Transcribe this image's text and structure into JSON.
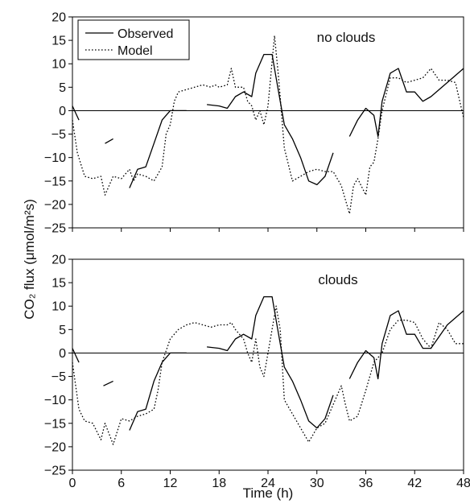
{
  "chart_data": [
    {
      "type": "line",
      "panel_label": "no clouds",
      "x_range": [
        0,
        48
      ],
      "ylim": [
        -25,
        20
      ],
      "x_ticks": [
        "0",
        "6",
        "12",
        "18",
        "24",
        "30",
        "36",
        "42",
        "48"
      ],
      "y_ticks": [
        "20",
        "15",
        "10",
        "5",
        "0",
        "−5",
        "−10",
        "−15",
        "−20",
        "−25"
      ],
      "legend": {
        "position": "top-left",
        "entries": [
          "Observed",
          "Model"
        ]
      },
      "series": [
        {
          "name": "Observed",
          "style": "solid",
          "segments": [
            [
              [
                0,
                1
              ],
              [
                0.4,
                -0.5
              ],
              [
                0.8,
                -2
              ]
            ],
            [
              [
                4,
                -7
              ],
              [
                5,
                -6
              ]
            ],
            [
              [
                7,
                -16.5
              ],
              [
                8,
                -12.5
              ],
              [
                9,
                -12
              ],
              [
                10,
                -7
              ],
              [
                11,
                -2
              ],
              [
                12,
                0
              ],
              [
                13,
                0
              ],
              [
                14,
                0
              ]
            ],
            [
              [
                16.5,
                1.3
              ],
              [
                18,
                1
              ],
              [
                19,
                0.5
              ],
              [
                20,
                3
              ],
              [
                21,
                4
              ],
              [
                22,
                3
              ],
              [
                22.5,
                8
              ],
              [
                23.5,
                12
              ],
              [
                24.5,
                12
              ],
              [
                25,
                7
              ],
              [
                26,
                -3
              ],
              [
                27,
                -6
              ],
              [
                28,
                -10
              ],
              [
                29,
                -15
              ],
              [
                30,
                -15.8
              ],
              [
                31,
                -14
              ],
              [
                32,
                -9
              ]
            ],
            [
              [
                34,
                -5.5
              ],
              [
                35,
                -2
              ],
              [
                36,
                0.5
              ],
              [
                37,
                -1
              ],
              [
                37.5,
                -5.5
              ],
              [
                38,
                2
              ],
              [
                39,
                8
              ],
              [
                40,
                9
              ],
              [
                41,
                4
              ],
              [
                42,
                4
              ],
              [
                43,
                2
              ],
              [
                44,
                3
              ],
              [
                46,
                6
              ],
              [
                48,
                9
              ]
            ]
          ]
        },
        {
          "name": "Model",
          "style": "dotted",
          "segments": [
            [
              [
                0,
                -2
              ],
              [
                0.6,
                -9
              ],
              [
                1.5,
                -14
              ],
              [
                2.5,
                -14.5
              ],
              [
                3.5,
                -14
              ],
              [
                4,
                -18
              ],
              [
                5,
                -14
              ],
              [
                6,
                -14.5
              ],
              [
                7,
                -12.5
              ],
              [
                7.5,
                -15
              ],
              [
                8,
                -13.5
              ],
              [
                9,
                -14
              ],
              [
                10,
                -15
              ],
              [
                11,
                -12
              ],
              [
                11.5,
                -5
              ],
              [
                12,
                -3
              ],
              [
                12.5,
                2
              ],
              [
                13,
                4
              ],
              [
                14,
                4.5
              ],
              [
                15,
                5
              ],
              [
                16,
                5.5
              ],
              [
                17,
                5
              ],
              [
                17.5,
                5.5
              ],
              [
                18,
                5
              ],
              [
                19,
                5.5
              ],
              [
                19.5,
                9
              ],
              [
                20,
                5
              ],
              [
                21,
                5
              ],
              [
                21.5,
                2
              ],
              [
                22,
                1
              ],
              [
                22.5,
                -2
              ],
              [
                23,
                0
              ],
              [
                23.5,
                -3
              ],
              [
                24,
                1
              ],
              [
                24.8,
                16
              ],
              [
                25.3,
                7
              ],
              [
                26,
                -8
              ],
              [
                27,
                -15
              ],
              [
                28,
                -14
              ],
              [
                29,
                -13
              ],
              [
                30,
                -12.5
              ],
              [
                31,
                -13
              ],
              [
                32,
                -13
              ],
              [
                33,
                -16
              ],
              [
                33.5,
                -19
              ],
              [
                34,
                -22
              ],
              [
                34.5,
                -16
              ],
              [
                35,
                -14.5
              ],
              [
                36,
                -18
              ],
              [
                36.5,
                -12
              ],
              [
                37,
                -11
              ],
              [
                37.5,
                -6
              ],
              [
                38,
                0
              ],
              [
                39,
                7
              ],
              [
                40,
                7
              ],
              [
                41,
                6
              ],
              [
                42,
                6.5
              ],
              [
                43,
                7
              ],
              [
                44,
                9
              ],
              [
                45,
                6.5
              ],
              [
                46,
                6.5
              ],
              [
                47,
                6
              ],
              [
                48,
                -1.5
              ]
            ]
          ]
        }
      ]
    },
    {
      "type": "line",
      "panel_label": "clouds",
      "x_range": [
        0,
        48
      ],
      "ylim": [
        -25,
        20
      ],
      "x_ticks": [
        "0",
        "6",
        "12",
        "18",
        "24",
        "30",
        "36",
        "42",
        "48"
      ],
      "y_ticks": [
        "20",
        "15",
        "10",
        "5",
        "0",
        "−5",
        "−10",
        "−15",
        "−20",
        "−25"
      ],
      "series": [
        {
          "name": "Observed",
          "style": "solid",
          "segments": [
            [
              [
                0,
                1
              ],
              [
                0.4,
                -0.5
              ],
              [
                0.8,
                -2
              ]
            ],
            [
              [
                3.8,
                -7
              ],
              [
                5,
                -6
              ]
            ],
            [
              [
                7,
                -16.5
              ],
              [
                8,
                -12.5
              ],
              [
                9,
                -12
              ],
              [
                10,
                -6
              ],
              [
                11,
                -2
              ],
              [
                12,
                0
              ],
              [
                13,
                0
              ],
              [
                14,
                0
              ]
            ],
            [
              [
                16.5,
                1.3
              ],
              [
                18,
                1
              ],
              [
                19,
                0.5
              ],
              [
                20,
                3
              ],
              [
                21,
                4
              ],
              [
                22,
                3
              ],
              [
                22.5,
                8
              ],
              [
                23.5,
                12
              ],
              [
                24.5,
                12
              ],
              [
                25,
                7
              ],
              [
                26,
                -3
              ],
              [
                27,
                -6
              ],
              [
                28,
                -10
              ],
              [
                29,
                -14.5
              ],
              [
                30,
                -16
              ],
              [
                31,
                -14
              ],
              [
                32,
                -9
              ]
            ],
            [
              [
                34,
                -5.5
              ],
              [
                35,
                -2
              ],
              [
                36,
                0.5
              ],
              [
                37,
                -1
              ],
              [
                37.5,
                -5.5
              ],
              [
                38,
                2
              ],
              [
                39,
                8
              ],
              [
                40,
                9
              ],
              [
                41,
                4
              ],
              [
                42,
                4
              ],
              [
                43,
                1
              ],
              [
                44,
                1
              ],
              [
                46,
                6
              ],
              [
                48,
                9
              ]
            ]
          ]
        },
        {
          "name": "Model",
          "style": "dotted",
          "segments": [
            [
              [
                0,
                -2
              ],
              [
                0.8,
                -12
              ],
              [
                1.5,
                -14.5
              ],
              [
                2.5,
                -15
              ],
              [
                3.5,
                -18.5
              ],
              [
                4,
                -15
              ],
              [
                5,
                -19.5
              ],
              [
                6,
                -14
              ],
              [
                7,
                -14.5
              ],
              [
                8,
                -13.5
              ],
              [
                9,
                -13
              ],
              [
                10,
                -12
              ],
              [
                10.5,
                -8
              ],
              [
                11,
                -2
              ],
              [
                12,
                3
              ],
              [
                13,
                5
              ],
              [
                14,
                6
              ],
              [
                15,
                6.5
              ],
              [
                16,
                6
              ],
              [
                17,
                5.5
              ],
              [
                18,
                6
              ],
              [
                19,
                6
              ],
              [
                19.5,
                6.5
              ],
              [
                20,
                5
              ],
              [
                21,
                3
              ],
              [
                21.5,
                0
              ],
              [
                22,
                -2
              ],
              [
                22.5,
                3
              ],
              [
                23,
                -3
              ],
              [
                23.5,
                -5
              ],
              [
                24,
                0
              ],
              [
                25,
                10
              ],
              [
                25.5,
                5
              ],
              [
                26,
                -10
              ],
              [
                27,
                -13
              ],
              [
                28,
                -16
              ],
              [
                29,
                -19
              ],
              [
                30,
                -16
              ],
              [
                31,
                -15
              ],
              [
                32,
                -11
              ],
              [
                33,
                -7
              ],
              [
                33.5,
                -11
              ],
              [
                34,
                -14.5
              ],
              [
                35,
                -13.5
              ],
              [
                36,
                -8
              ],
              [
                37,
                -2
              ],
              [
                38,
                0
              ],
              [
                39,
                5
              ],
              [
                40,
                7
              ],
              [
                41,
                7
              ],
              [
                42,
                6.5
              ],
              [
                43,
                3
              ],
              [
                44,
                1
              ],
              [
                45,
                6.5
              ],
              [
                46,
                5
              ],
              [
                47,
                2
              ],
              [
                48,
                2
              ]
            ]
          ]
        }
      ]
    }
  ],
  "shared_labels": {
    "x_axis_label": "Time (h)",
    "y_axis_label": "CO₂ flux (μmol/m²s)"
  }
}
